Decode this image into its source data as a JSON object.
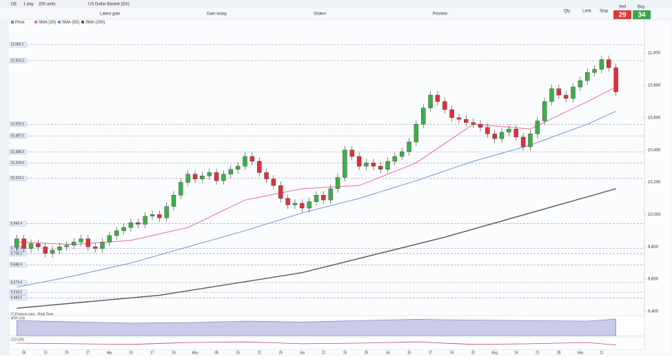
{
  "toolbar": {
    "symbol": "DE",
    "interval": "1 day",
    "quantity": "200 units",
    "instrument": "US Dollar Basket (DX)"
  },
  "summary": {
    "latest_gain": "Latest gain",
    "gain_today": "Gain today",
    "orders": "Orders",
    "position": "Position"
  },
  "ticket": {
    "qty": "Qty",
    "limit": "Limit",
    "stop": "Stop",
    "sell": "Sell",
    "buy": "Buy",
    "sell_price": "29",
    "buy_price": "34"
  },
  "chart_data": {
    "type": "candlestick",
    "legend": [
      "Price",
      "SMA (20)",
      "SMA (50)",
      "SMA (200)"
    ],
    "up_color": "#3fae49",
    "down_color": "#e0303a",
    "xlim": [
      -1,
      88
    ],
    "xticks": [
      {
        "value": 1,
        "label": "06"
      },
      {
        "value": 4,
        "label": "13"
      },
      {
        "value": 7,
        "label": "20"
      },
      {
        "value": 10,
        "label": "27"
      },
      {
        "value": 13,
        "label": "Apr"
      },
      {
        "value": 16,
        "label": "10"
      },
      {
        "value": 19,
        "label": "17"
      },
      {
        "value": 22,
        "label": "24"
      },
      {
        "value": 25,
        "label": "May"
      },
      {
        "value": 28,
        "label": "08"
      },
      {
        "value": 31,
        "label": "15"
      },
      {
        "value": 34,
        "label": "22"
      },
      {
        "value": 37,
        "label": "29"
      },
      {
        "value": 40,
        "label": "Jun"
      },
      {
        "value": 43,
        "label": "12"
      },
      {
        "value": 46,
        "label": "19"
      },
      {
        "value": 49,
        "label": "26"
      },
      {
        "value": 52,
        "label": "Jul"
      },
      {
        "value": 55,
        "label": "10"
      },
      {
        "value": 58,
        "label": "17"
      },
      {
        "value": 61,
        "label": "24"
      },
      {
        "value": 64,
        "label": "31"
      },
      {
        "value": 67,
        "label": "Aug"
      },
      {
        "value": 70,
        "label": "14"
      },
      {
        "value": 73,
        "label": "21"
      },
      {
        "value": 76,
        "label": "28"
      },
      {
        "value": 79,
        "label": "Sep"
      },
      {
        "value": 82,
        "label": "11"
      }
    ],
    "ylim": [
      9387,
      11167
    ],
    "yticks": [
      {
        "value": 9400,
        "label": "9,400"
      },
      {
        "value": 9600,
        "label": "9,600"
      },
      {
        "value": 9800,
        "label": "9,800"
      },
      {
        "value": 10000,
        "label": "10,000"
      },
      {
        "value": 10200,
        "label": "10,200"
      },
      {
        "value": 10400,
        "label": "10,400"
      },
      {
        "value": 10600,
        "label": "10,600"
      },
      {
        "value": 10800,
        "label": "10,800"
      },
      {
        "value": 11000,
        "label": "11,000"
      }
    ],
    "levels": [
      {
        "value": 11052.1,
        "label": "11,052.1"
      },
      {
        "value": 10953.3,
        "label": "10,953.3"
      },
      {
        "value": 10559.3,
        "label": "10,559.3"
      },
      {
        "value": 10487.5,
        "label": "10,487.5"
      },
      {
        "value": 10388.3,
        "label": "10,388.3"
      },
      {
        "value": 10318.6,
        "label": "10,318.6"
      },
      {
        "value": 10224.1,
        "label": "10,224.1"
      },
      {
        "value": 9943.4,
        "label": "9,943.4"
      },
      {
        "value": 9790.2,
        "label": "9,790.2"
      },
      {
        "value": 9758.3,
        "label": "9,758.3"
      },
      {
        "value": 9688.4,
        "label": "9,688.4"
      },
      {
        "value": 9579.4,
        "label": "9,579.4"
      },
      {
        "value": 9518.6,
        "label": "9,518.6"
      },
      {
        "value": 9483.5,
        "label": "9,483.5"
      }
    ],
    "open": [
      9800,
      9850,
      9790,
      9820,
      9800,
      9760,
      9780,
      9800,
      9810,
      9830,
      9850,
      9800,
      9790,
      9830,
      9870,
      9900,
      9920,
      9950,
      9940,
      9990,
      10000,
      9980,
      10050,
      10120,
      10200,
      10250,
      10220,
      10240,
      10260,
      10210,
      10250,
      10280,
      10300,
      10360,
      10330,
      10260,
      10220,
      10180,
      10100,
      10060,
      10070,
      10040,
      10080,
      10120,
      10090,
      10160,
      10230,
      10400,
      10360,
      10300,
      10320,
      10300,
      10280,
      10330,
      10360,
      10390,
      10450,
      10560,
      10660,
      10740,
      10700,
      10650,
      10600,
      10590,
      10570,
      10560,
      10540,
      10500,
      10470,
      10510,
      10530,
      10480,
      10420,
      10500,
      10580,
      10700,
      10780,
      10740,
      10720,
      10790,
      10830,
      10880,
      10900,
      10960,
      10910
    ],
    "high": [
      9875,
      9875,
      9845,
      9845,
      9825,
      9805,
      9825,
      9835,
      9855,
      9875,
      9875,
      9825,
      9855,
      9895,
      9925,
      9945,
      9975,
      9975,
      10015,
      10025,
      10025,
      10075,
      10145,
      10225,
      10275,
      10275,
      10265,
      10285,
      10285,
      10275,
      10305,
      10325,
      10385,
      10385,
      10355,
      10285,
      10245,
      10205,
      10125,
      10095,
      10095,
      10105,
      10145,
      10145,
      10185,
      10255,
      10425,
      10425,
      10385,
      10345,
      10345,
      10325,
      10355,
      10385,
      10415,
      10475,
      10585,
      10685,
      10765,
      10765,
      10725,
      10675,
      10625,
      10615,
      10595,
      10585,
      10565,
      10525,
      10535,
      10555,
      10555,
      10505,
      10525,
      10605,
      10725,
      10805,
      10805,
      10765,
      10815,
      10855,
      10905,
      10925,
      10985,
      10985,
      10935
    ],
    "low": [
      9775,
      9765,
      9765,
      9775,
      9735,
      9735,
      9755,
      9775,
      9785,
      9805,
      9775,
      9765,
      9765,
      9805,
      9845,
      9875,
      9895,
      9915,
      9915,
      9965,
      9955,
      9955,
      10025,
      10095,
      10175,
      10195,
      10195,
      10215,
      10185,
      10185,
      10225,
      10255,
      10275,
      10305,
      10235,
      10195,
      10155,
      10075,
      10035,
      10035,
      10015,
      10015,
      10055,
      10065,
      10065,
      10135,
      10205,
      10335,
      10275,
      10275,
      10275,
      10255,
      10255,
      10305,
      10335,
      10365,
      10425,
      10535,
      10635,
      10675,
      10625,
      10575,
      10565,
      10545,
      10535,
      10515,
      10475,
      10445,
      10445,
      10485,
      10455,
      10395,
      10395,
      10475,
      10555,
      10675,
      10715,
      10695,
      10695,
      10765,
      10805,
      10855,
      10875,
      10885,
      10735
    ],
    "close": [
      9850,
      9790,
      9820,
      9800,
      9760,
      9780,
      9800,
      9810,
      9830,
      9850,
      9800,
      9790,
      9830,
      9870,
      9900,
      9920,
      9950,
      9940,
      9990,
      10000,
      9980,
      10050,
      10120,
      10200,
      10250,
      10220,
      10240,
      10260,
      10210,
      10250,
      10280,
      10300,
      10360,
      10330,
      10260,
      10220,
      10180,
      10100,
      10060,
      10070,
      10040,
      10080,
      10120,
      10090,
      10160,
      10230,
      10400,
      10360,
      10300,
      10320,
      10300,
      10280,
      10330,
      10360,
      10390,
      10450,
      10560,
      10660,
      10740,
      10700,
      10650,
      10600,
      10590,
      10570,
      10560,
      10540,
      10500,
      10470,
      10510,
      10530,
      10480,
      10420,
      10500,
      10580,
      10700,
      10780,
      10740,
      10720,
      10790,
      10830,
      10880,
      10900,
      10960,
      10910,
      10760
    ],
    "series": [
      {
        "name": "SMA (20)",
        "color": "#e86a9a",
        "x": [
          0,
          8,
          16,
          24,
          32,
          40,
          48,
          56,
          64,
          72,
          80,
          84
        ],
        "values": [
          9830,
          9815,
          9840,
          9920,
          10090,
          10160,
          10180,
          10320,
          10560,
          10530,
          10700,
          10790
        ]
      },
      {
        "name": "SMA (50)",
        "color": "#6f8fd8",
        "x": [
          0,
          8,
          16,
          24,
          32,
          40,
          48,
          56,
          64,
          72,
          80,
          84
        ],
        "values": [
          9550,
          9620,
          9700,
          9800,
          9900,
          10010,
          10100,
          10210,
          10330,
          10430,
          10560,
          10640
        ]
      },
      {
        "name": "SMA (200)",
        "color": "#555555",
        "x": [
          0,
          20,
          40,
          60,
          84
        ],
        "values": [
          9420,
          9500,
          9640,
          9860,
          10160
        ]
      }
    ],
    "indicators": [
      {
        "name": "ATR (14)",
        "source": "IT-Finance.com - Real Time",
        "color": "#8a8fc8",
        "ylim": [
          0,
          80
        ],
        "x": [
          0,
          8,
          16,
          24,
          32,
          40,
          48,
          56,
          64,
          72,
          80,
          84
        ],
        "values": [
          60,
          55,
          50,
          52,
          58,
          54,
          60,
          65,
          62,
          60,
          58,
          66
        ]
      },
      {
        "name": "CCI (20)",
        "color": "#c0407a",
        "ylim": [
          0,
          100
        ],
        "x": [
          0,
          8,
          16,
          24,
          32,
          40,
          48,
          56,
          64,
          72,
          80,
          84
        ],
        "values": [
          50,
          45,
          40,
          55,
          60,
          45,
          50,
          60,
          40,
          45,
          55,
          35
        ]
      }
    ]
  }
}
